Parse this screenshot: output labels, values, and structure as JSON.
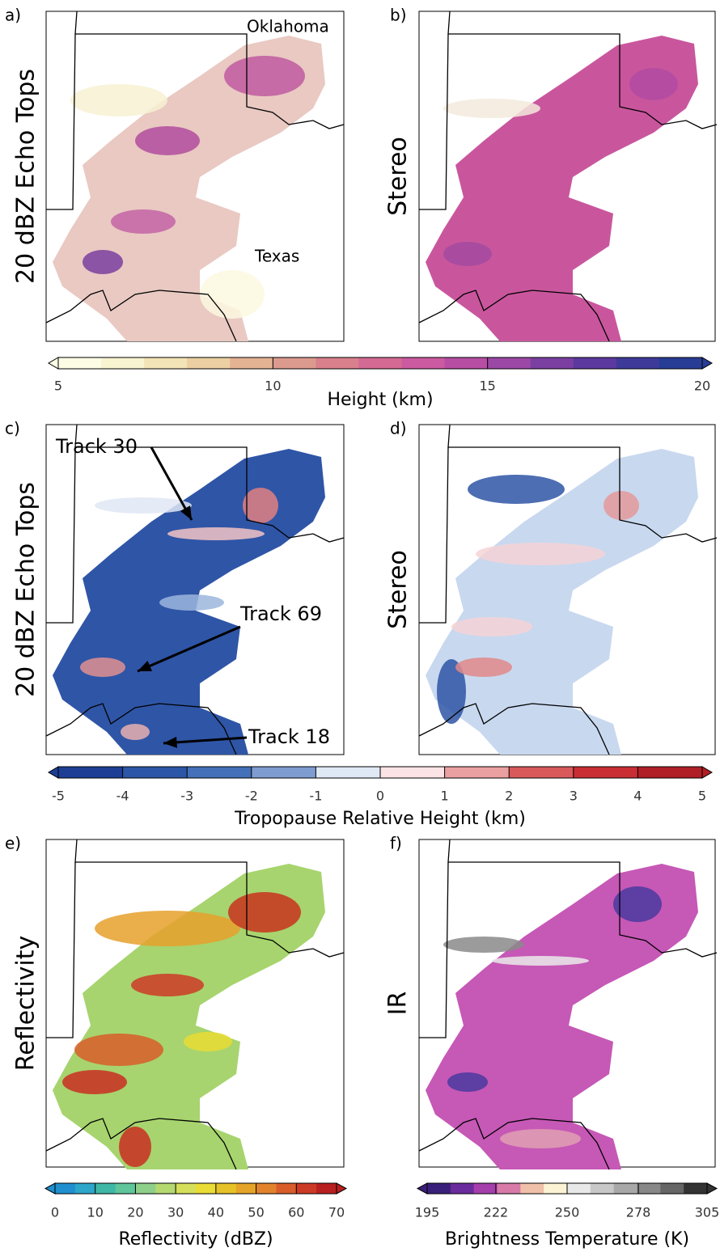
{
  "panels": [
    {
      "letter": "a)",
      "ylabel": "20 dBZ Echo Tops",
      "labels": [
        "Oklahoma",
        "Texas"
      ]
    },
    {
      "letter": "b)",
      "ylabel": "Stereo"
    },
    {
      "letter": "c)",
      "ylabel": "20 dBZ Echo Tops",
      "annotations": [
        "Track 30",
        "Track 69",
        "Track 18"
      ]
    },
    {
      "letter": "d)",
      "ylabel": "Stereo"
    },
    {
      "letter": "e)",
      "ylabel": "Reflectivity"
    },
    {
      "letter": "f)",
      "ylabel": "IR"
    }
  ],
  "colorbars": [
    {
      "label": "Height (km)",
      "lim": [
        5,
        20
      ],
      "ticks": [
        5,
        10,
        15,
        20
      ],
      "colors": [
        "#fdfde6",
        "#f8f3d0",
        "#f3e4b7",
        "#eccfa2",
        "#e4b394",
        "#dc9a8e",
        "#d9808c",
        "#d46a93",
        "#cc5aa0",
        "#b84ea4",
        "#9c48a6",
        "#7b3fa2",
        "#5c399e",
        "#3e3a9a",
        "#283d95"
      ]
    },
    {
      "label": "Tropopause Relative Height (km)",
      "lim": [
        -5,
        5
      ],
      "ticks": [
        -5,
        -4,
        -3,
        -2,
        -1,
        0,
        1,
        2,
        3,
        4,
        5
      ],
      "colors": [
        "#1d3e94",
        "#2c56a7",
        "#4470b9",
        "#7e9ccf",
        "#dfe8f5",
        "#fbe3e6",
        "#eaa0a0",
        "#d9595a",
        "#c82e34",
        "#b01e26"
      ]
    },
    {
      "label": "Reflectivity (dBZ)",
      "lim": [
        0,
        70
      ],
      "ticks": [
        0,
        10,
        20,
        30,
        40,
        50,
        60,
        70
      ],
      "colors": [
        "#1f8fcf",
        "#2ca6c9",
        "#3fb7a7",
        "#5fc59a",
        "#8ecf8a",
        "#b5d86f",
        "#d6df5a",
        "#e9dc34",
        "#e6c229",
        "#e5a428",
        "#e2832b",
        "#d85d2a",
        "#cc3a26",
        "#b81f1f"
      ]
    },
    {
      "label": "Brightness Temperature (K)",
      "lim": [
        195,
        305
      ],
      "ticks": [
        195,
        222,
        250,
        278,
        305
      ],
      "colors": [
        "#3a1f7a",
        "#6a2c9c",
        "#a53fab",
        "#d87aa8",
        "#f0c0a8",
        "#fcf3d4",
        "#e8e8e8",
        "#c8c8c8",
        "#a8a8a8",
        "#888888",
        "#666666",
        "#333333"
      ]
    }
  ]
}
